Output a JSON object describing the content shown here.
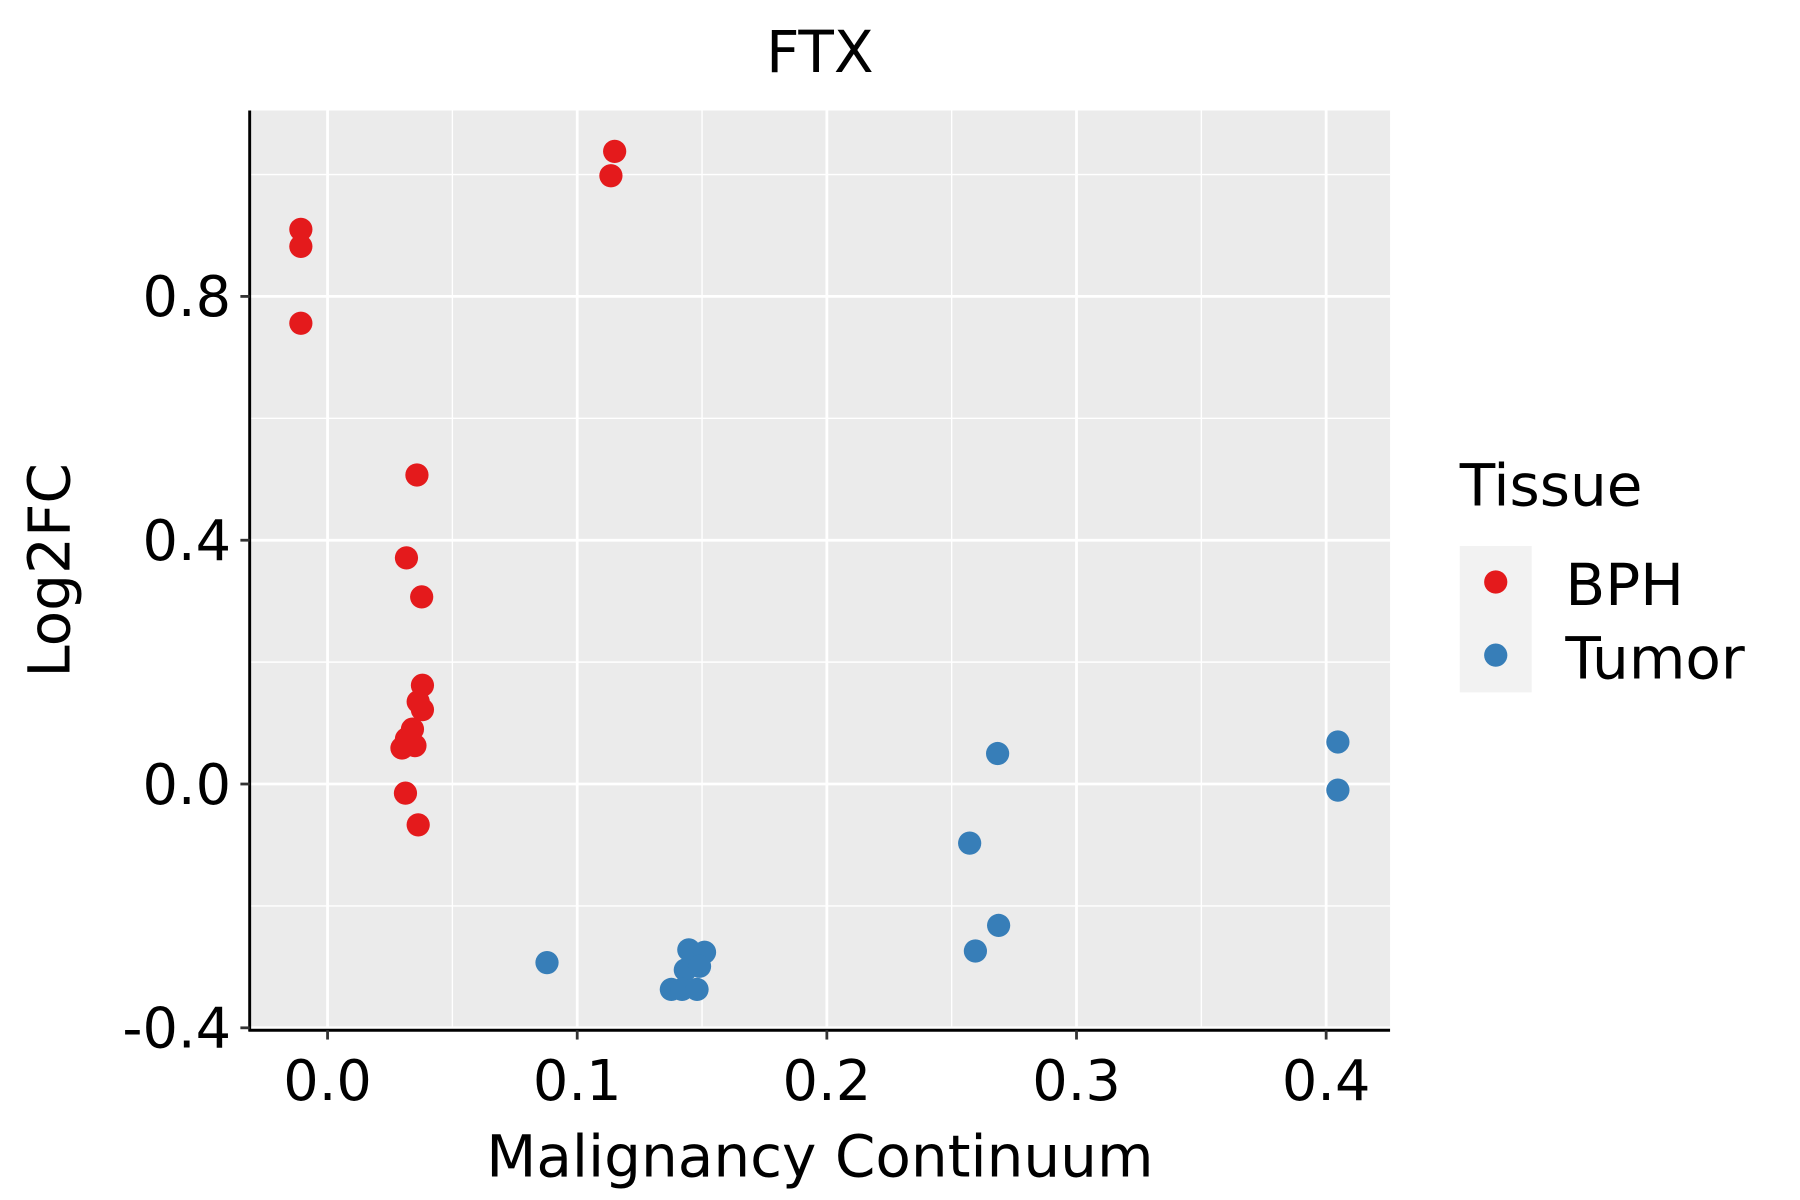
{
  "chart_data": {
    "type": "scatter",
    "title": "FTX",
    "xlabel": "Malignancy Continuum",
    "ylabel": "Log2FC",
    "xlim": [
      -0.0312,
      0.4256
    ],
    "ylim": [
      -0.404,
      1.105
    ],
    "x_ticks": [
      0.0,
      0.1,
      0.2,
      0.3,
      0.4
    ],
    "x_tick_labels": [
      "0.0",
      "0.1",
      "0.2",
      "0.3",
      "0.4"
    ],
    "y_ticks": [
      -0.4,
      0.0,
      0.4,
      0.8
    ],
    "y_tick_labels": [
      "-0.4",
      "0.0",
      "0.4",
      "0.8"
    ],
    "grid": true,
    "legend": {
      "title": "Tissue",
      "placement": "right"
    },
    "series": [
      {
        "name": "BPH",
        "color": "#E41A1C",
        "points": [
          [
            -0.0107,
            0.91
          ],
          [
            -0.0107,
            0.882
          ],
          [
            -0.0107,
            0.756
          ],
          [
            0.115,
            1.038
          ],
          [
            0.1135,
            0.998
          ],
          [
            0.0358,
            0.507
          ],
          [
            0.0316,
            0.371
          ],
          [
            0.0377,
            0.307
          ],
          [
            0.038,
            0.162
          ],
          [
            0.0363,
            0.135
          ],
          [
            0.038,
            0.122
          ],
          [
            0.034,
            0.09
          ],
          [
            0.0316,
            0.074
          ],
          [
            0.035,
            0.063
          ],
          [
            0.0298,
            0.059
          ],
          [
            0.0312,
            -0.015
          ],
          [
            0.0363,
            -0.067
          ]
        ]
      },
      {
        "name": "Tumor",
        "color": "#377EB8",
        "points": [
          [
            0.0879,
            -0.293
          ],
          [
            0.1447,
            -0.272
          ],
          [
            0.151,
            -0.276
          ],
          [
            0.1433,
            -0.305
          ],
          [
            0.149,
            -0.299
          ],
          [
            0.1377,
            -0.337
          ],
          [
            0.142,
            -0.337
          ],
          [
            0.148,
            -0.337
          ],
          [
            0.2572,
            -0.097
          ],
          [
            0.2684,
            0.05
          ],
          [
            0.2688,
            -0.232
          ],
          [
            0.2595,
            -0.274
          ],
          [
            0.4047,
            0.069
          ],
          [
            0.4047,
            -0.01
          ]
        ]
      }
    ]
  }
}
